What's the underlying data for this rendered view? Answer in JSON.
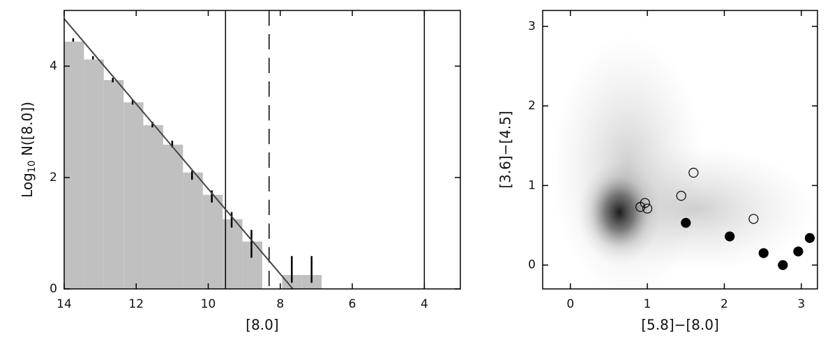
{
  "chart_data": [
    {
      "type": "histogram",
      "xlabel": "[8.0]",
      "ylabel": "Log",
      "ylabel_sub": "10",
      "ylabel_rest": " N([8.0])",
      "bins": [
        14,
        13.45,
        12.9,
        12.35,
        11.8,
        11.25,
        10.7,
        10.15,
        9.6,
        9.05,
        8.5,
        7.95,
        7.4,
        6.85
      ],
      "counts": [
        4.44,
        4.12,
        3.75,
        3.35,
        2.94,
        2.59,
        2.09,
        1.69,
        1.25,
        0.85,
        0,
        0.25,
        0.25
      ],
      "color": "#c0c0c0",
      "errorbars": {
        "x": [
          13.75,
          13.2,
          12.65,
          12.1,
          11.55,
          11.0,
          10.45,
          9.9,
          9.35,
          8.8,
          7.68,
          7.13
        ],
        "values": [
          4.47,
          4.15,
          3.75,
          3.35,
          2.95,
          2.6,
          2.04,
          1.66,
          1.24,
          0.81,
          0.35,
          0.35
        ],
        "errors": [
          0.03,
          0.03,
          0.04,
          0.04,
          0.05,
          0.06,
          0.08,
          0.11,
          0.14,
          0.25,
          0.24,
          0.24
        ]
      },
      "fit": {
        "x": [
          14,
          7.65
        ],
        "y": [
          4.85,
          0
        ]
      },
      "vlines": [
        {
          "x": 9.52,
          "style": "solid"
        },
        {
          "x": 8.31,
          "style": "dashed"
        },
        {
          "x": 4.0,
          "style": "solid"
        }
      ],
      "xlim": [
        14,
        3
      ],
      "ylim": [
        0,
        5
      ],
      "xticks": [
        14,
        12,
        10,
        8,
        6,
        4
      ],
      "yticks": [
        0,
        2,
        4
      ]
    },
    {
      "type": "scatter",
      "xlabel": "[5.8]−[8.0]",
      "ylabel": "[3.6]−[4.5]",
      "series": [
        {
          "marker": "open",
          "x": [
            0.91,
            0.97,
            1.0,
            1.44,
            1.6,
            2.38
          ],
          "values": [
            0.73,
            0.78,
            0.71,
            0.87,
            1.16,
            0.58
          ]
        },
        {
          "marker": "filled",
          "x": [
            1.5,
            2.07,
            2.51,
            2.76,
            2.96,
            3.11
          ],
          "values": [
            0.53,
            0.36,
            0.15,
            0.0,
            0.17,
            0.34
          ]
        }
      ],
      "xlim": [
        -0.36,
        3.21
      ],
      "ylim": [
        -0.3,
        3.2
      ],
      "xticks": [
        0,
        1,
        2,
        3
      ],
      "yticks": [
        0,
        1,
        2,
        3
      ]
    }
  ]
}
